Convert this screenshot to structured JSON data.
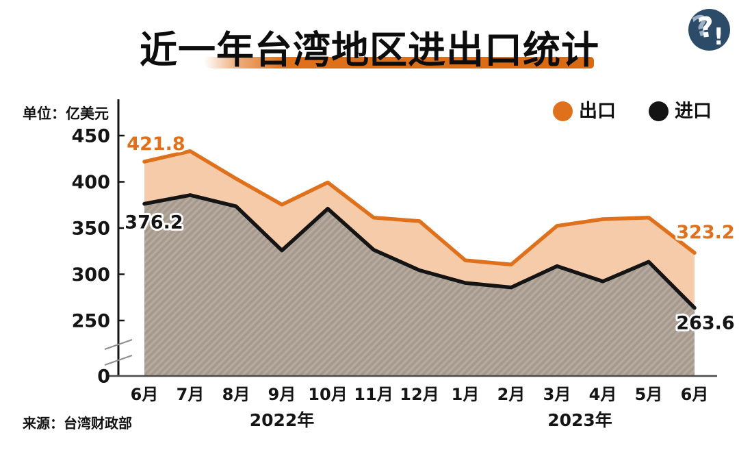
{
  "header": {
    "title": "近一年台湾地区进出口统计",
    "logo": {
      "glyph_back": "?",
      "glyph_front": "?",
      "glyph_exclaim": "!"
    }
  },
  "chart": {
    "unit_label": "单位：亿美元",
    "source_label": "来源：台湾财政部"
  },
  "chart_data": {
    "type": "area",
    "title": "近一年台湾地区进出口统计",
    "ylabel": "亿美元",
    "categories": [
      "6月",
      "7月",
      "8月",
      "9月",
      "10月",
      "11月",
      "12月",
      "1月",
      "2月",
      "3月",
      "4月",
      "5月",
      "6月"
    ],
    "year_groups": [
      {
        "label": "2022年",
        "from": 0,
        "to": 6
      },
      {
        "label": "2023年",
        "from": 7,
        "to": 12
      }
    ],
    "series": [
      {
        "name": "出口",
        "color": "#e0711c",
        "fill": "#f6cba9",
        "values": [
          421.8,
          433.2,
          403.4,
          375.3,
          399.3,
          361.3,
          357.5,
          315.1,
          310.5,
          352.4,
          359.6,
          361.3,
          323.2
        ]
      },
      {
        "name": "进口",
        "color": "#141414",
        "fill": "#aca094",
        "values": [
          376.2,
          385.6,
          373.5,
          325.8,
          370.9,
          326.5,
          304.4,
          290.7,
          285.8,
          308.8,
          292.3,
          313.5,
          263.6
        ]
      }
    ],
    "y_ticks": [
      450,
      400,
      350,
      300,
      250,
      0
    ],
    "y_axis_break": true,
    "ylim": [
      0,
      450
    ],
    "grid": false,
    "legend_position": "top-right",
    "annotations": [
      {
        "series": 0,
        "index": 0,
        "text": "421.8",
        "placement": "above"
      },
      {
        "series": 1,
        "index": 0,
        "text": "376.2",
        "placement": "below"
      },
      {
        "series": 0,
        "index": 12,
        "text": "323.2",
        "placement": "right-above"
      },
      {
        "series": 1,
        "index": 12,
        "text": "263.6",
        "placement": "right-below"
      }
    ]
  }
}
